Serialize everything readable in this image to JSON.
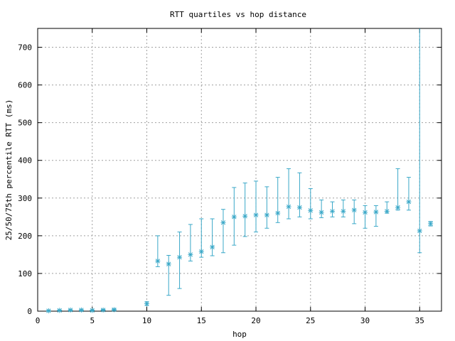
{
  "chart_data": {
    "type": "scatter",
    "title": "RTT quartiles vs hop distance",
    "xlabel": "hop",
    "ylabel": "25/50/75th percentile RTT (ms)",
    "xlim": [
      0,
      37
    ],
    "ylim": [
      0,
      750
    ],
    "xticks": [
      0,
      5,
      10,
      15,
      20,
      25,
      30,
      35
    ],
    "yticks": [
      0,
      100,
      200,
      300,
      400,
      500,
      600,
      700
    ],
    "grid": true,
    "series_color": "#3aa8c8",
    "points": [
      {
        "x": 1,
        "q1": 0,
        "median": 1,
        "q3": 2
      },
      {
        "x": 2,
        "q1": 1,
        "median": 2,
        "q3": 3
      },
      {
        "x": 3,
        "q1": 1,
        "median": 3,
        "q3": 4
      },
      {
        "x": 4,
        "q1": 1,
        "median": 3,
        "q3": 4
      },
      {
        "x": 5,
        "q1": 1,
        "median": 2,
        "q3": 3
      },
      {
        "x": 6,
        "q1": 2,
        "median": 3,
        "q3": 5
      },
      {
        "x": 7,
        "q1": 2,
        "median": 4,
        "q3": 6
      },
      {
        "x": 10,
        "q1": 15,
        "median": 20,
        "q3": 25
      },
      {
        "x": 11,
        "q1": 118,
        "median": 133,
        "q3": 200
      },
      {
        "x": 12,
        "q1": 42,
        "median": 125,
        "q3": 148
      },
      {
        "x": 13,
        "q1": 60,
        "median": 143,
        "q3": 210
      },
      {
        "x": 14,
        "q1": 133,
        "median": 150,
        "q3": 230
      },
      {
        "x": 15,
        "q1": 143,
        "median": 158,
        "q3": 245
      },
      {
        "x": 16,
        "q1": 147,
        "median": 170,
        "q3": 245
      },
      {
        "x": 17,
        "q1": 155,
        "median": 235,
        "q3": 270
      },
      {
        "x": 18,
        "q1": 175,
        "median": 250,
        "q3": 328
      },
      {
        "x": 19,
        "q1": 198,
        "median": 252,
        "q3": 340
      },
      {
        "x": 20,
        "q1": 210,
        "median": 255,
        "q3": 345
      },
      {
        "x": 21,
        "q1": 220,
        "median": 255,
        "q3": 330
      },
      {
        "x": 22,
        "q1": 235,
        "median": 260,
        "q3": 355
      },
      {
        "x": 23,
        "q1": 245,
        "median": 277,
        "q3": 378
      },
      {
        "x": 24,
        "q1": 250,
        "median": 275,
        "q3": 367
      },
      {
        "x": 25,
        "q1": 245,
        "median": 267,
        "q3": 325
      },
      {
        "x": 26,
        "q1": 248,
        "median": 262,
        "q3": 295
      },
      {
        "x": 27,
        "q1": 250,
        "median": 265,
        "q3": 290
      },
      {
        "x": 28,
        "q1": 250,
        "median": 265,
        "q3": 295
      },
      {
        "x": 29,
        "q1": 232,
        "median": 268,
        "q3": 295
      },
      {
        "x": 30,
        "q1": 220,
        "median": 262,
        "q3": 280
      },
      {
        "x": 31,
        "q1": 225,
        "median": 263,
        "q3": 280
      },
      {
        "x": 32,
        "q1": 260,
        "median": 265,
        "q3": 290
      },
      {
        "x": 33,
        "q1": 268,
        "median": 275,
        "q3": 378
      },
      {
        "x": 34,
        "q1": 268,
        "median": 290,
        "q3": 355
      },
      {
        "x": 35,
        "q1": 155,
        "median": 213,
        "q3": 750
      },
      {
        "x": 36,
        "q1": 226,
        "median": 232,
        "q3": 238
      }
    ]
  }
}
